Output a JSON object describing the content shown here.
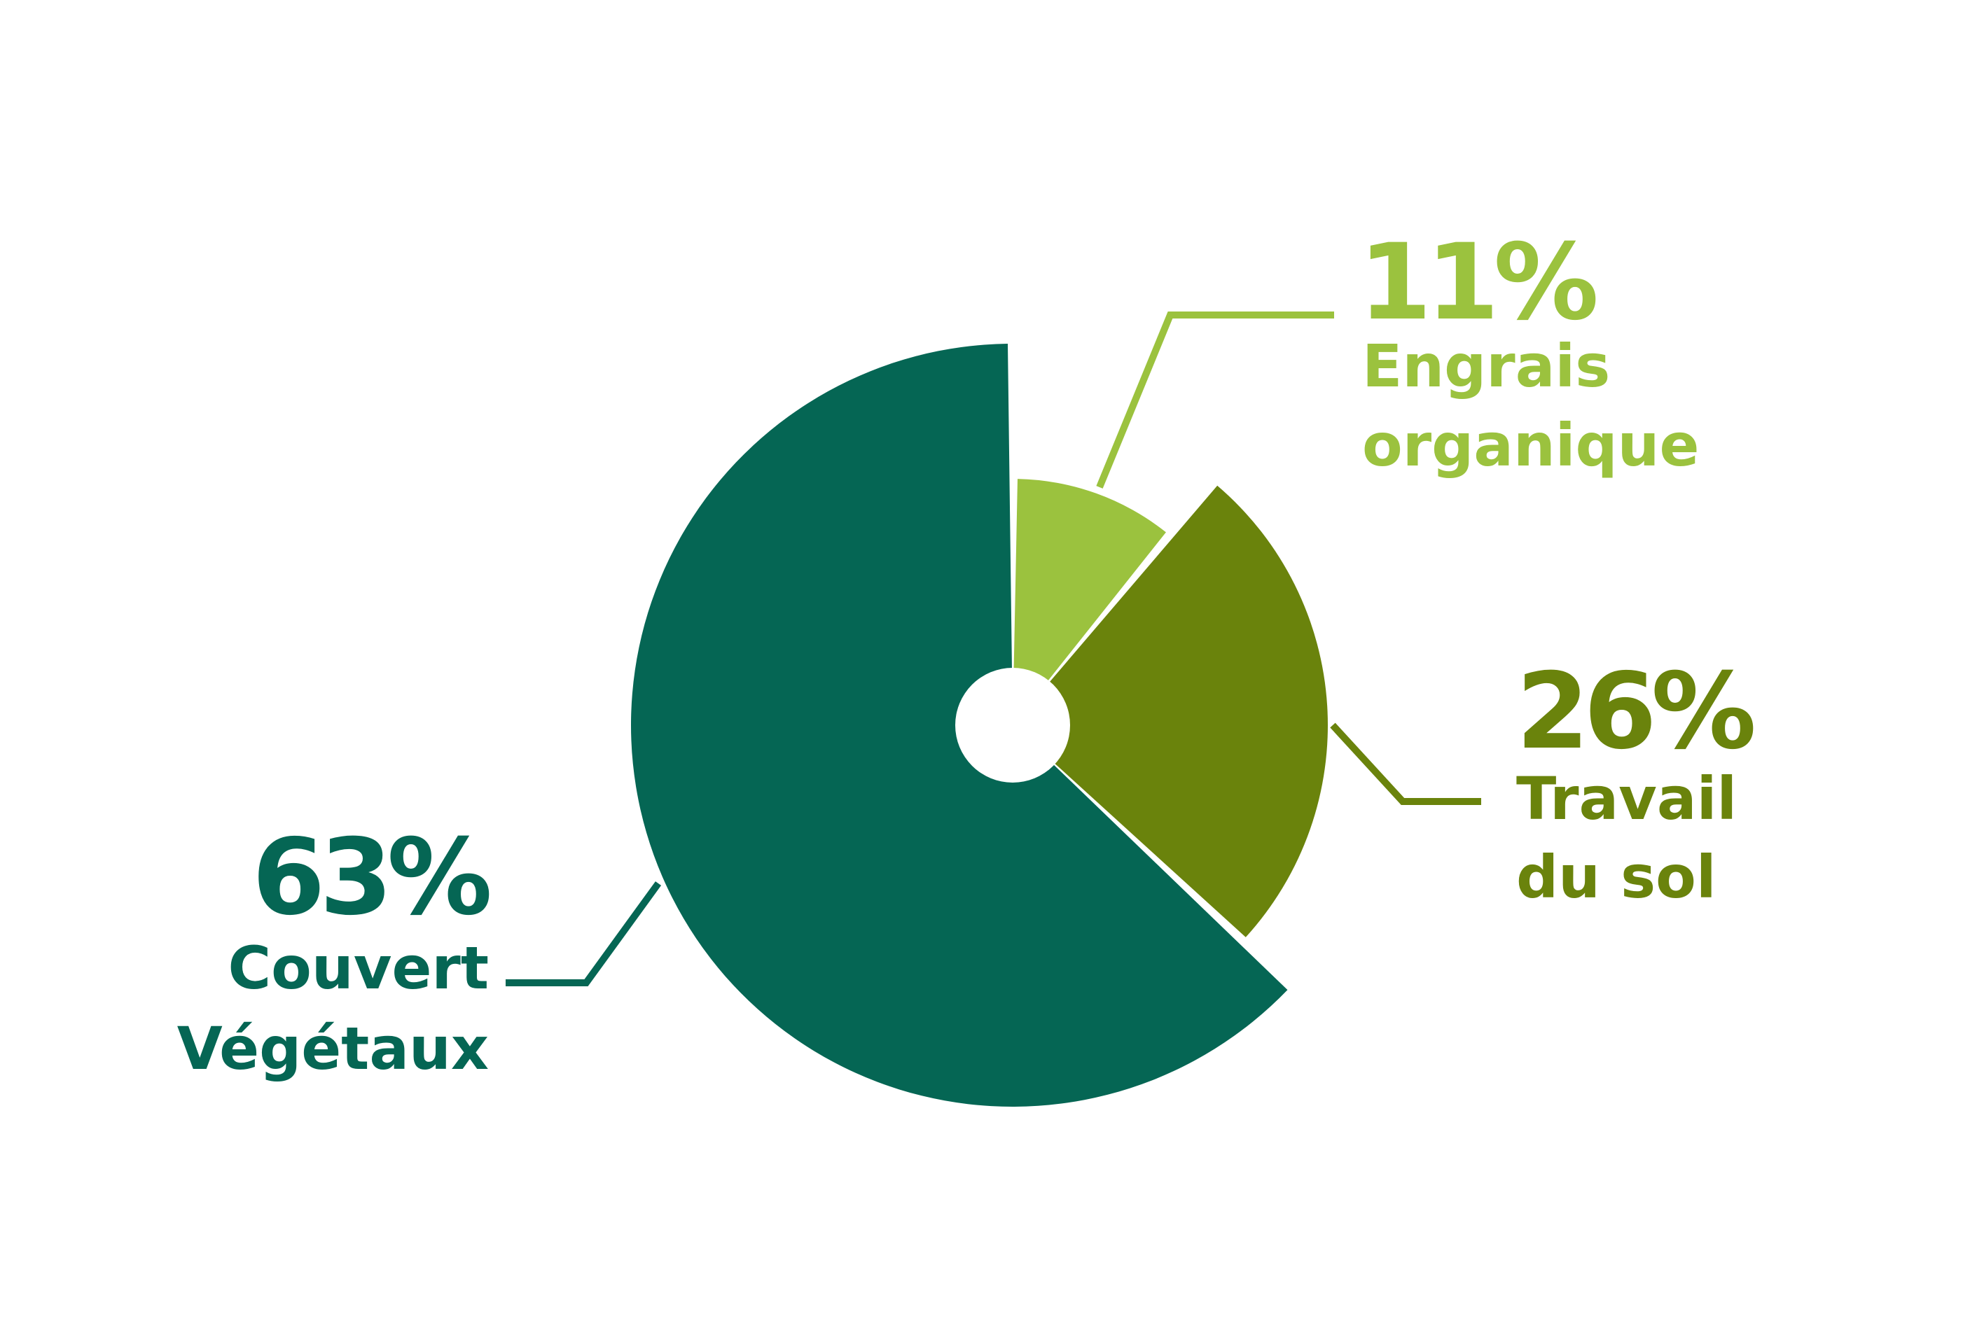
{
  "chart_data": {
    "type": "pie",
    "title": "",
    "slices": [
      {
        "label": "Engrais organique",
        "label_lines": [
          "Engrais",
          "organique"
        ],
        "value": 11,
        "value_label": "11%",
        "color": "#9bc23e"
      },
      {
        "label": "Travail du sol",
        "label_lines": [
          "Travail",
          "du sol"
        ],
        "value": 26,
        "value_label": "26%",
        "color": "#6a830c"
      },
      {
        "label": "Couvert Végétaux",
        "label_lines": [
          "Couvert",
          "Végétaux"
        ],
        "value": 63,
        "value_label": "63%",
        "color": "#056654"
      }
    ]
  }
}
